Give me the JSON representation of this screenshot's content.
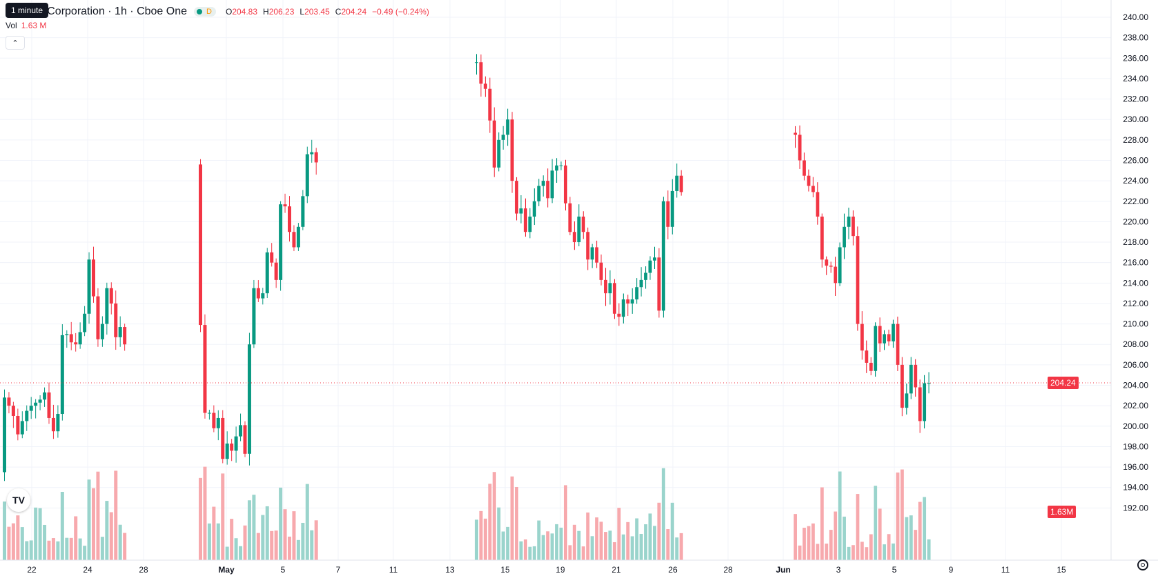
{
  "header": {
    "tooltip": "1 minute",
    "symbol_title": "A Corporation · 1h · Cboe One",
    "marker_label": "D",
    "ohlc": {
      "o_label": "O",
      "o_value": "204.83",
      "h_label": "H",
      "h_value": "206.23",
      "l_label": "L",
      "l_value": "203.45",
      "c_label": "C",
      "c_value": "204.24",
      "change": "−0.49 (−0.24%)"
    },
    "volume_label": "Vol",
    "volume_value": "1.63 M",
    "collapse_icon": "chevron-up-icon"
  },
  "logo_text": "TV",
  "colors": {
    "up": "#089981",
    "down": "#f23645",
    "up_volume": "#9ad4cc",
    "down_volume": "#f7a9ad",
    "grid": "#f0f3fa",
    "current_price_line": "#f23645"
  },
  "chart_data": {
    "type": "candlestick",
    "ylim": [
      191,
      241
    ],
    "y_ticks": [
      "240.00",
      "238.00",
      "236.00",
      "234.00",
      "232.00",
      "230.00",
      "228.00",
      "226.00",
      "224.00",
      "222.00",
      "220.00",
      "218.00",
      "216.00",
      "214.00",
      "212.00",
      "210.00",
      "208.00",
      "206.00",
      "204.00",
      "202.00",
      "200.00",
      "198.00",
      "196.00",
      "194.00",
      "192.00"
    ],
    "x_ticks": [
      "22",
      "24",
      "28",
      "May",
      "5",
      "7",
      "11",
      "13",
      "15",
      "19",
      "21",
      "26",
      "28",
      "Jun",
      "3",
      "5",
      "9",
      "11",
      "15"
    ],
    "current_price": "204.24",
    "current_volume": "1.63M",
    "segments": [
      [
        202.8,
        202.0,
        201.0,
        199.2,
        200.5,
        201.5,
        202.0,
        202.3,
        202.6,
        203.3,
        200.8,
        199.5,
        201.2,
        208.9,
        209.0,
        208.2,
        208.0,
        209.2,
        211.0,
        216.3,
        212.7,
        208.5,
        210.0,
        213.5,
        212.0,
        208.7,
        209.7,
        208.0
      ],
      [
        209.9,
        201.3,
        201.3,
        199.8,
        200.8,
        196.8,
        198.3,
        197.6,
        199.0,
        200.1,
        197.3,
        208.0,
        213.5,
        212.5,
        213.0,
        217.0,
        216.0,
        214.3,
        221.7,
        221.5,
        219.0,
        217.5,
        219.5,
        222.5,
        226.6,
        226.8,
        225.8
      ],
      [
        235.6,
        233.5,
        233.0,
        229.9,
        225.3,
        228.0,
        228.5,
        230.0,
        224.0,
        220.8,
        221.3,
        219.0,
        220.5,
        222.0,
        223.5,
        224.0,
        222.3,
        225.0,
        225.5,
        225.5,
        221.8,
        219.0,
        218.0,
        220.5,
        219.0,
        216.3,
        217.5,
        216.0,
        214.3,
        213.0,
        214.0,
        211.0,
        210.7,
        212.4,
        212.0,
        212.4,
        213.6,
        214.3,
        215.0,
        216.2,
        216.5,
        211.3,
        222.0,
        219.5,
        223.0,
        224.5,
        222.9
      ],
      [
        228.5,
        226.0,
        224.5,
        223.5,
        222.9,
        220.5,
        216.3,
        215.7,
        215.6,
        214.0,
        217.5,
        219.5,
        220.5,
        218.6,
        210.0,
        207.4,
        206.2,
        205.4,
        209.8,
        208.1,
        209.0,
        208.3,
        210.0,
        206.0,
        201.8,
        203.2,
        206.0,
        203.8,
        200.5,
        204.2,
        204.2
      ]
    ],
    "segment_starts": [
      195.5,
      225.6,
      235.6,
      228.7
    ],
    "volume_scale": [
      0,
      100
    ]
  }
}
